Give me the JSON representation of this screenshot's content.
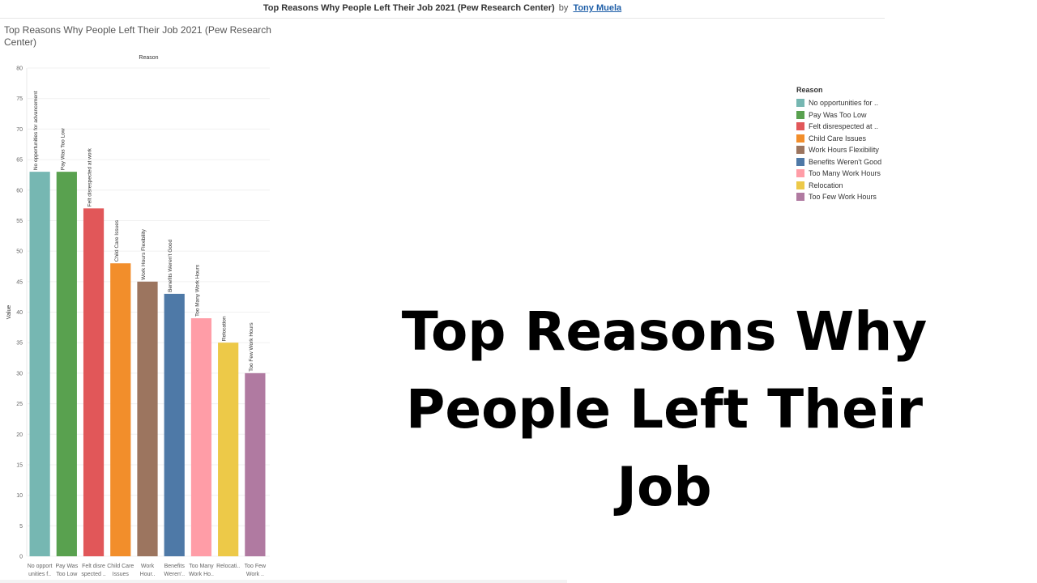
{
  "header": {
    "title": "Top Reasons Why People Left Their Job 2021 (Pew Research Center)",
    "by": "by",
    "author": "Tony Muela"
  },
  "sheet_title": "Top Reasons Why People Left Their Job 2021 (Pew Research Center)",
  "headline": {
    "line1": "Top Reasons Why",
    "line2": "People Left Their Job"
  },
  "legend": {
    "title": "Reason",
    "items": [
      {
        "label": "No opportunities for ..",
        "color": "#76b7b2"
      },
      {
        "label": "Pay Was Too Low",
        "color": "#59a14f"
      },
      {
        "label": "Felt disrespected at ..",
        "color": "#e15759"
      },
      {
        "label": "Child Care Issues",
        "color": "#f28e2b"
      },
      {
        "label": "Work Hours Flexibility",
        "color": "#9c755f"
      },
      {
        "label": "Benefits Weren't Good",
        "color": "#4e79a7"
      },
      {
        "label": "Too Many Work Hours",
        "color": "#ff9da7"
      },
      {
        "label": "Relocation",
        "color": "#edc948"
      },
      {
        "label": "Too Few Work Hours",
        "color": "#b07aa1"
      }
    ]
  },
  "chart_data": {
    "type": "bar",
    "column_header": "Reason",
    "ylabel": "Value",
    "ylim": [
      0,
      80
    ],
    "yticks": [
      "0",
      "5",
      "10",
      "15",
      "20",
      "25",
      "30",
      "35",
      "40",
      "45",
      "50",
      "55",
      "60",
      "65",
      "70",
      "75",
      "80"
    ],
    "grid": true,
    "legend_placement": "right",
    "categories": [
      "No opportunities for advancement",
      "Pay Was Too Low",
      "Felt disrespected at work",
      "Child Care Issues",
      "Work Hours Flexibility",
      "Benefits Weren't Good",
      "Too Many Work Hours",
      "Relocation",
      "Too Few Work Hours"
    ],
    "tick_labels": [
      [
        "No opport",
        "unities f.."
      ],
      [
        "Pay Was",
        "Too Low"
      ],
      [
        "Felt disre",
        "spected .."
      ],
      [
        "Child Care",
        "Issues"
      ],
      [
        "Work",
        "Hour.."
      ],
      [
        "Benefits",
        "Weren'.."
      ],
      [
        "Too Many",
        "Work Ho.."
      ],
      [
        "Relocati..",
        ""
      ],
      [
        "Too Few",
        "Work .."
      ]
    ],
    "values": [
      63,
      63,
      57,
      48,
      45,
      43,
      39,
      35,
      30
    ],
    "colors": [
      "#76b7b2",
      "#59a14f",
      "#e15759",
      "#f28e2b",
      "#9c755f",
      "#4e79a7",
      "#ff9da7",
      "#edc948",
      "#b07aa1"
    ]
  }
}
